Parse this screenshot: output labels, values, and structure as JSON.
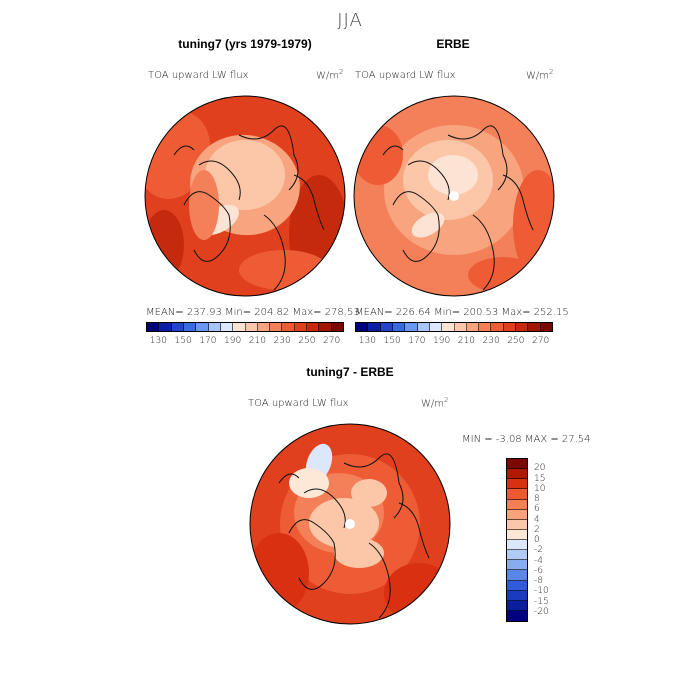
{
  "figure": {
    "title": "JJA",
    "panels": [
      {
        "title": "tuning7 (yrs 1979-1979)",
        "variable": "TOA upward LW flux",
        "units": "W/m",
        "units_exp": "2",
        "stats": "MEAN= 237.93   Min= 204.82   Max= 278.53",
        "colorbar_ticks": [
          "130",
          "150",
          "170",
          "190",
          "210",
          "230",
          "250",
          "270"
        ]
      },
      {
        "title": "ERBE",
        "variable": "TOA upward LW flux",
        "units": "W/m",
        "units_exp": "2",
        "stats": "MEAN= 226.64   Min= 200.53   Max= 252.15",
        "colorbar_ticks": [
          "130",
          "150",
          "170",
          "190",
          "210",
          "230",
          "250",
          "270"
        ]
      },
      {
        "title": "tuning7 - ERBE",
        "variable": "TOA upward LW flux",
        "units": "W/m",
        "units_exp": "2",
        "stats": "MIN =   -3.08 MAX =   27.54",
        "colorbar_ticks": [
          "20",
          "15",
          "10",
          "8",
          "6",
          "4",
          "2",
          "0",
          "-2",
          "-4",
          "-6",
          "-8",
          "-10",
          "-15",
          "-20"
        ]
      }
    ]
  },
  "colors": {
    "abs_scale": [
      "#00007a",
      "#0a1ea8",
      "#2244cc",
      "#3a6ae0",
      "#6a98f0",
      "#a8c6f8",
      "#dce8fb",
      "#fde3d3",
      "#fbc7a8",
      "#f8a47e",
      "#f4805a",
      "#ee5c36",
      "#e0401e",
      "#c62a0c",
      "#a01400",
      "#780800"
    ],
    "diff_scale": [
      "#7a0a00",
      "#b01800",
      "#d83010",
      "#ee5a30",
      "#f57e55",
      "#f9a27c",
      "#fcc7a8",
      "#fde8d8",
      "#dbe7fb",
      "#b0cbf6",
      "#88acf2",
      "#5a86ea",
      "#2f5bdc",
      "#1a3ac0",
      "#0c1ea0",
      "#000080"
    ]
  },
  "chart_data": [
    {
      "type": "heatmap",
      "title": "tuning7 (yrs 1979-1979)",
      "variable": "TOA upward LW flux",
      "units": "W/m^2",
      "projection": "polar stereographic (north)",
      "mean": 237.93,
      "min": 204.82,
      "max": 278.53,
      "levels": [
        130,
        140,
        150,
        160,
        170,
        180,
        190,
        200,
        210,
        220,
        230,
        240,
        250,
        260,
        270
      ]
    },
    {
      "type": "heatmap",
      "title": "ERBE",
      "variable": "TOA upward LW flux",
      "units": "W/m^2",
      "projection": "polar stereographic (north)",
      "mean": 226.64,
      "min": 200.53,
      "max": 252.15,
      "levels": [
        130,
        140,
        150,
        160,
        170,
        180,
        190,
        200,
        210,
        220,
        230,
        240,
        250,
        260,
        270
      ]
    },
    {
      "type": "heatmap",
      "title": "tuning7 - ERBE",
      "variable": "TOA upward LW flux",
      "units": "W/m^2",
      "projection": "polar stereographic (north)",
      "min": -3.08,
      "max": 27.54,
      "levels": [
        -20,
        -15,
        -10,
        -8,
        -6,
        -4,
        -2,
        0,
        2,
        4,
        6,
        8,
        10,
        15,
        20
      ]
    }
  ]
}
